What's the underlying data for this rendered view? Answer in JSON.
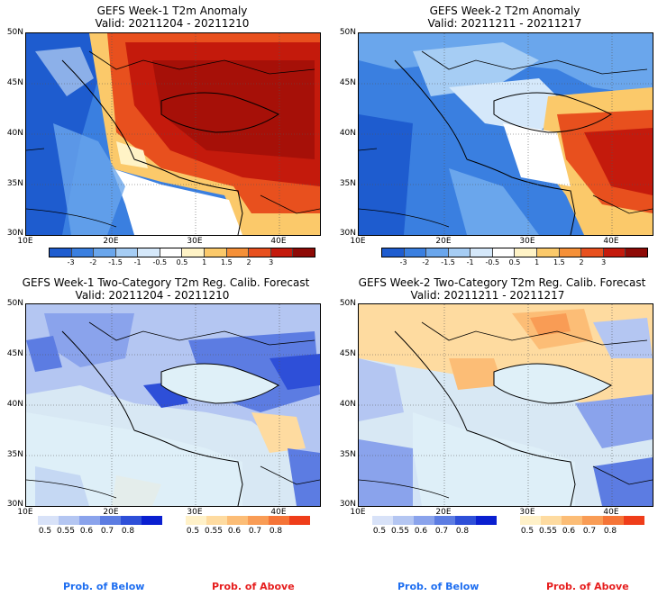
{
  "panels": {
    "p1": {
      "title": "GEFS Week-1 T2m Anomaly",
      "valid": "Valid: 20211204 - 20211210"
    },
    "p2": {
      "title": "GEFS Week-2 T2m Anomaly",
      "valid": "Valid: 20211211 - 20211217"
    },
    "p3": {
      "title": "GEFS Week-1 Two-Category T2m Reg. Calib. Forecast",
      "valid": "Valid: 20211204 - 20211210"
    },
    "p4": {
      "title": "GEFS Week-2 Two-Category T2m Reg. Calib. Forecast",
      "valid": "Valid: 20211211 - 20211217"
    }
  },
  "lat_labels": [
    "50N",
    "45N",
    "40N",
    "35N",
    "30N"
  ],
  "lon_labels": [
    "10E",
    "20E",
    "30E",
    "40E"
  ],
  "anomaly_colorbar": {
    "colors": [
      "#1e5ccf",
      "#3a7fe0",
      "#6aa6ec",
      "#a6cdf4",
      "#d5e8fa",
      "#ffffff",
      "#fff3c6",
      "#fbc96a",
      "#f59038",
      "#e8501e",
      "#c41a0c",
      "#8e0a06"
    ],
    "ticks": [
      "-3",
      "-2",
      "-1.5",
      "-1",
      "-0.5",
      "0.5",
      "1",
      "1.5",
      "2",
      "3"
    ]
  },
  "prob_below": {
    "colors": [
      "#d8e2f8",
      "#b4c6f2",
      "#8aa3ec",
      "#5c7ce2",
      "#2e4fd8",
      "#0a1fd0"
    ],
    "ticks": [
      "0.5",
      "0.55",
      "0.6",
      "0.7",
      "0.8"
    ]
  },
  "prob_above": {
    "colors": [
      "#fff1c8",
      "#fedba0",
      "#fcbd76",
      "#f99c55",
      "#f57437",
      "#ef3d1a"
    ],
    "ticks": [
      "0.5",
      "0.55",
      "0.6",
      "0.7",
      "0.8"
    ]
  },
  "footer": {
    "below": "Prob. of Below",
    "above": "Prob. of Above"
  },
  "colors": {
    "below_text": "#1e6ef0",
    "above_text": "#e61e1e"
  }
}
